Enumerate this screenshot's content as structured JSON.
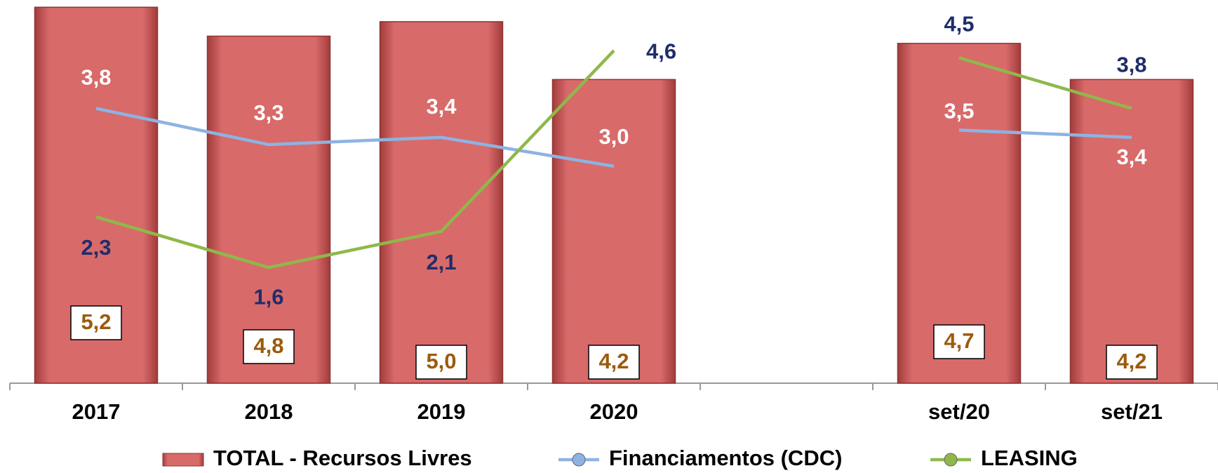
{
  "chart_data": {
    "type": "bar",
    "categories": [
      "2017",
      "2018",
      "2019",
      "2020",
      null,
      "set/20",
      "set/21"
    ],
    "ylim": [
      0,
      5.3
    ],
    "series": [
      {
        "name": "TOTAL - Recursos Livres",
        "type": "bar",
        "color": "#d05e5e",
        "values": [
          5.2,
          4.8,
          5.0,
          4.2,
          null,
          4.7,
          4.2
        ],
        "value_labels": [
          "5,2",
          "4,8",
          "5,0",
          "4,2",
          null,
          "4,7",
          "4,2"
        ]
      },
      {
        "name": "Financiamentos (CDC)",
        "type": "line",
        "color": "#8db3e2",
        "values": [
          3.8,
          3.3,
          3.4,
          3.0,
          null,
          3.5,
          3.4
        ],
        "value_labels": [
          "3,8",
          "3,3",
          "3,4",
          "3,0",
          null,
          "3,5",
          "3,4"
        ]
      },
      {
        "name": "LEASING",
        "type": "line",
        "color": "#8fb84a",
        "values": [
          2.3,
          1.6,
          2.1,
          4.6,
          null,
          4.5,
          3.8
        ],
        "value_labels": [
          "2,3",
          "1,6",
          "2,1",
          "4,6",
          null,
          "4,5",
          "3,8"
        ]
      }
    ]
  }
}
